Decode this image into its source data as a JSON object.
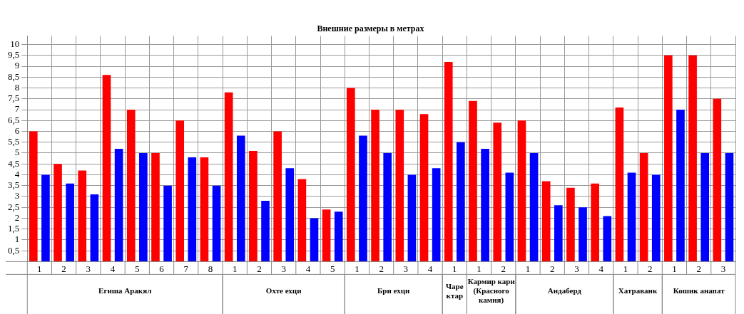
{
  "chart_data": {
    "type": "bar",
    "title": "Внешние размеры в метрах",
    "categories": [
      "1",
      "2",
      "3",
      "4",
      "5",
      "6",
      "7",
      "8",
      "1",
      "2",
      "3",
      "4",
      "5",
      "1",
      "2",
      "3",
      "4",
      "1",
      "1",
      "2",
      "1",
      "2",
      "3",
      "4",
      "1",
      "2",
      "1",
      "2",
      "3"
    ],
    "series": [
      {
        "color": "#ff0000",
        "values": [
          6,
          4.5,
          4.2,
          8.6,
          7,
          5,
          6.5,
          4.8,
          7.8,
          5.1,
          6,
          3.8,
          2.4,
          8,
          7,
          7,
          6.8,
          9.2,
          7.4,
          6.4,
          6.5,
          3.7,
          3.4,
          3.6,
          7.1,
          5,
          9.5,
          9.5,
          7.5
        ]
      },
      {
        "color": "#0000ff",
        "values": [
          4,
          3.6,
          3.1,
          5.2,
          5,
          3.5,
          4.8,
          3.5,
          5.8,
          2.8,
          4.3,
          2,
          2.3,
          5.8,
          5,
          4,
          4.3,
          5.5,
          5.2,
          4.1,
          5,
          2.6,
          2.5,
          2.1,
          4.1,
          4,
          7,
          5,
          5
        ]
      }
    ],
    "ylim": [
      0,
      10.4
    ],
    "yticks": [
      {
        "value": 0.5,
        "label": "0,5"
      },
      1,
      {
        "value": 1.5,
        "label": "1,5"
      },
      2,
      {
        "value": 2.5,
        "label": "2,5"
      },
      3,
      {
        "value": 3.5,
        "label": "3,5"
      },
      4,
      {
        "value": 4.5,
        "label": "4,5"
      },
      5,
      {
        "value": 5.5,
        "label": "5,5"
      },
      6,
      {
        "value": 6.5,
        "label": "6,5"
      },
      7,
      {
        "value": 7.5,
        "label": "7,5"
      },
      8,
      {
        "value": 8.5,
        "label": "8,5"
      },
      9,
      {
        "value": 9.5,
        "label": "9,5"
      },
      10
    ],
    "annotations": [
      "Егиша Аракял",
      "Охте ехци",
      "Бри ехци",
      "Чаре ктар",
      "Кармир кари (Красного камня)",
      "Андаберд",
      "Хатраванк",
      "Кошик анапат"
    ],
    "grid": true,
    "legend": false
  }
}
